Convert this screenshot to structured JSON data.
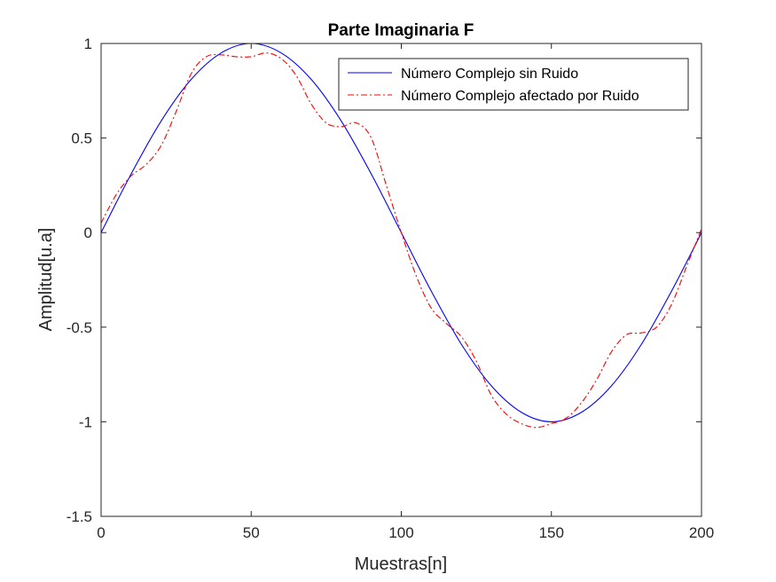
{
  "chart_data": {
    "type": "line",
    "title": "Parte Imaginaria F",
    "xlabel": "Muestras[n]",
    "ylabel": "Amplitud[u.a]",
    "xlim": [
      0,
      200
    ],
    "ylim": [
      -1.5,
      1
    ],
    "xticks": [
      0,
      50,
      100,
      150,
      200
    ],
    "xtick_labels": [
      "0",
      "50",
      "100",
      "150",
      "200"
    ],
    "yticks": [
      -1.5,
      -1,
      -0.5,
      0,
      0.5,
      1
    ],
    "ytick_labels": [
      "-1.5",
      "-1",
      "-0.5",
      "0",
      "0.5",
      "1"
    ],
    "grid": false,
    "legend_position": "top-right",
    "series": [
      {
        "name": "Número Complejo sin Ruido",
        "color": "#0000ff",
        "style": "solid",
        "x": [
          0,
          10,
          20,
          30,
          40,
          50,
          60,
          70,
          80,
          90,
          100,
          110,
          120,
          130,
          140,
          150,
          160,
          170,
          180,
          190,
          200
        ],
        "y": [
          0,
          0.31,
          0.59,
          0.81,
          0.95,
          1.0,
          0.95,
          0.81,
          0.59,
          0.31,
          0,
          -0.31,
          -0.59,
          -0.81,
          -0.95,
          -1.0,
          -0.95,
          -0.81,
          -0.59,
          -0.31,
          0
        ]
      },
      {
        "name": "Número Complejo afectado por Ruido",
        "color": "#ff0000",
        "style": "dashdot",
        "x": [
          0,
          5,
          10,
          15,
          20,
          25,
          30,
          35,
          40,
          45,
          50,
          55,
          60,
          65,
          70,
          75,
          80,
          85,
          90,
          95,
          100,
          105,
          110,
          115,
          120,
          125,
          130,
          135,
          140,
          145,
          150,
          155,
          160,
          165,
          170,
          175,
          180,
          185,
          190,
          195,
          200
        ],
        "y": [
          0.05,
          0.2,
          0.3,
          0.36,
          0.46,
          0.64,
          0.84,
          0.93,
          0.94,
          0.93,
          0.93,
          0.95,
          0.92,
          0.83,
          0.68,
          0.58,
          0.56,
          0.58,
          0.5,
          0.25,
          0.0,
          -0.23,
          -0.4,
          -0.48,
          -0.55,
          -0.68,
          -0.86,
          -0.96,
          -1.01,
          -1.03,
          -1.01,
          -0.98,
          -0.9,
          -0.78,
          -0.63,
          -0.54,
          -0.53,
          -0.5,
          -0.38,
          -0.18,
          0.02
        ]
      }
    ]
  }
}
